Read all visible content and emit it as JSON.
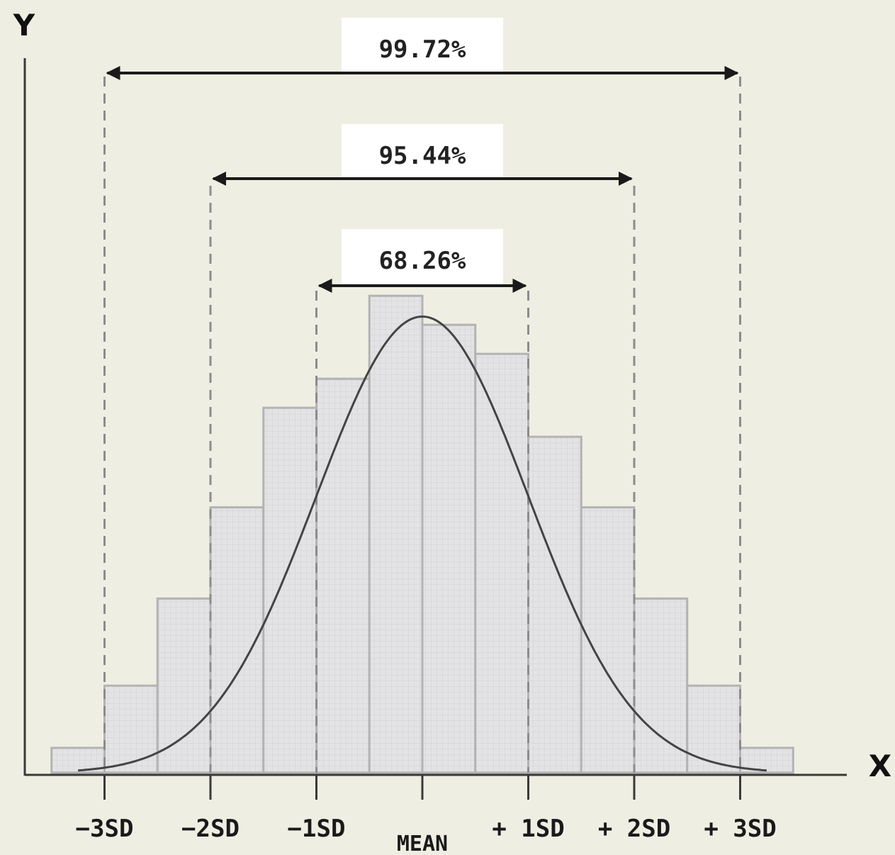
{
  "chart_data": {
    "type": "bar",
    "title": "",
    "xlabel": "X",
    "ylabel": "Y",
    "x_range_sd": [
      -3.5,
      3.5
    ],
    "bins": [
      {
        "from": -3.5,
        "to": -3.0,
        "value": 6
      },
      {
        "from": -3.0,
        "to": -2.5,
        "value": 21
      },
      {
        "from": -2.5,
        "to": -2.0,
        "value": 42
      },
      {
        "from": -2.0,
        "to": -1.5,
        "value": 64
      },
      {
        "from": -1.5,
        "to": -1.0,
        "value": 88
      },
      {
        "from": -1.0,
        "to": -0.5,
        "value": 95
      },
      {
        "from": -0.5,
        "to": 0.0,
        "value": 115
      },
      {
        "from": 0.0,
        "to": 0.5,
        "value": 108
      },
      {
        "from": 0.5,
        "to": 1.0,
        "value": 101
      },
      {
        "from": 1.0,
        "to": 1.5,
        "value": 81
      },
      {
        "from": 1.5,
        "to": 2.0,
        "value": 64
      },
      {
        "from": 2.0,
        "to": 2.5,
        "value": 42
      },
      {
        "from": 2.5,
        "to": 3.0,
        "value": 21
      },
      {
        "from": 3.0,
        "to": 3.5,
        "value": 6
      }
    ],
    "curve": {
      "type": "normal",
      "mean": 0,
      "sd": 1,
      "peak": 110,
      "x_range": [
        -3.25,
        3.25
      ]
    },
    "ticks": [
      {
        "x": -3,
        "label": "−3SD"
      },
      {
        "x": -2,
        "label": "−2SD"
      },
      {
        "x": -1,
        "label": "−1SD"
      },
      {
        "x": 0,
        "label": "MEAN"
      },
      {
        "x": 1,
        "label": "+ 1SD"
      },
      {
        "x": 2,
        "label": "+ 2SD"
      },
      {
        "x": 3,
        "label": "+ 3SD"
      }
    ],
    "annotations": [
      {
        "label": "99.72%",
        "from": -3,
        "to": 3
      },
      {
        "label": "95.44%",
        "from": -2,
        "to": 2
      },
      {
        "label": "68.26%",
        "from": -1,
        "to": 1
      }
    ],
    "grid": false,
    "colors": {
      "bar_fill": "#e1e1e3",
      "bar_stroke": "#b3b3b3",
      "curve": "#444444",
      "dashes": "#8c8c8c",
      "background": "#efeee3"
    }
  }
}
